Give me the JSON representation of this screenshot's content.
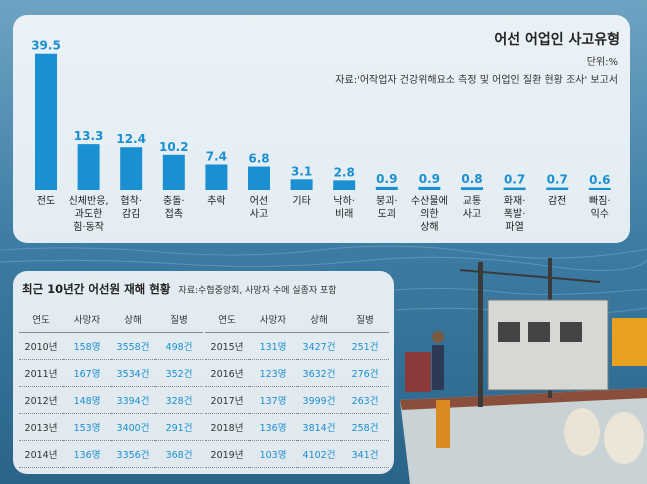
{
  "chart_data": {
    "type": "bar",
    "title": "어선 어업인 사고유형",
    "unit": "단위:%",
    "source": "자료:'어작업자 건강위해요소 측정 및 어업인 질환 현황 조사' 보고서",
    "categories": [
      [
        "전도"
      ],
      [
        "신체반응,",
        "과도한",
        "힘·동작"
      ],
      [
        "협착·",
        "감김"
      ],
      [
        "충돌·",
        "접촉"
      ],
      [
        "추락"
      ],
      [
        "어선",
        "사고"
      ],
      [
        "기타"
      ],
      [
        "낙하·",
        "비래"
      ],
      [
        "붕괴·",
        "도괴"
      ],
      [
        "수산물에",
        "의한",
        "상해"
      ],
      [
        "교통",
        "사고"
      ],
      [
        "화재·",
        "폭발·",
        "파열"
      ],
      [
        "감전"
      ],
      [
        "빠짐·",
        "익수"
      ]
    ],
    "values": [
      39.5,
      13.3,
      12.4,
      10.2,
      7.4,
      6.8,
      3.1,
      2.8,
      0.9,
      0.9,
      0.8,
      0.7,
      0.7,
      0.6
    ],
    "value_labels": [
      "39.5",
      "13.3",
      "12.4",
      "10.2",
      "7.4",
      "6.8",
      "3.1",
      "2.8",
      "0.9",
      "0.9",
      "0.8",
      "0.7",
      "0.7",
      "0.6"
    ],
    "ylim": [
      0,
      40
    ],
    "bar_color": "#1a8fd1",
    "label_color": "#1a8fd1"
  },
  "table": {
    "title": "최근 10년간 어선원 재해 현황",
    "note": "자료:수협중앙회, 사망자 수에 실종자 포함",
    "headers": [
      "연도",
      "사망자",
      "상해",
      "질병"
    ],
    "left_rows": [
      [
        "2010년",
        "158명",
        "3558건",
        "498건"
      ],
      [
        "2011년",
        "167명",
        "3534건",
        "352건"
      ],
      [
        "2012년",
        "148명",
        "3394건",
        "328건"
      ],
      [
        "2013년",
        "153명",
        "3400건",
        "291건"
      ],
      [
        "2014년",
        "136명",
        "3356건",
        "368건"
      ]
    ],
    "right_rows": [
      [
        "2015년",
        "131명",
        "3427건",
        "251건"
      ],
      [
        "2016년",
        "123명",
        "3632건",
        "276건"
      ],
      [
        "2017년",
        "137명",
        "3999건",
        "263건"
      ],
      [
        "2018년",
        "136명",
        "3814건",
        "258건"
      ],
      [
        "2019년",
        "103명",
        "4102건",
        "341건"
      ]
    ]
  },
  "colors": {
    "accent": "#1a8fd1",
    "sea": "#2f6e96"
  }
}
